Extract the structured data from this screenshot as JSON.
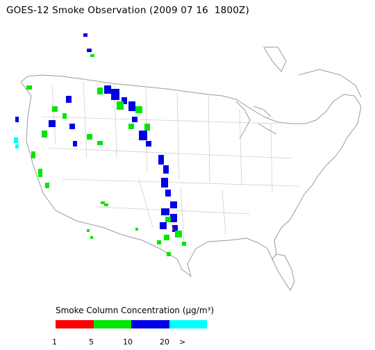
{
  "title": "GOES-12 Smoke Observation (2009 07 16  1800Z)",
  "legend": {
    "label": "Smoke Column Concentration (μg/m³)",
    "colors": [
      "#ff0000",
      "#00e600",
      "#0000e6",
      "#00ffff"
    ],
    "ticks": [
      "1",
      "5",
      "10",
      "20",
      ">"
    ]
  },
  "map": {
    "region": "Continental United States",
    "coastline_color": "#9a9a9a",
    "state_line_color": "#bdbdbd"
  }
}
